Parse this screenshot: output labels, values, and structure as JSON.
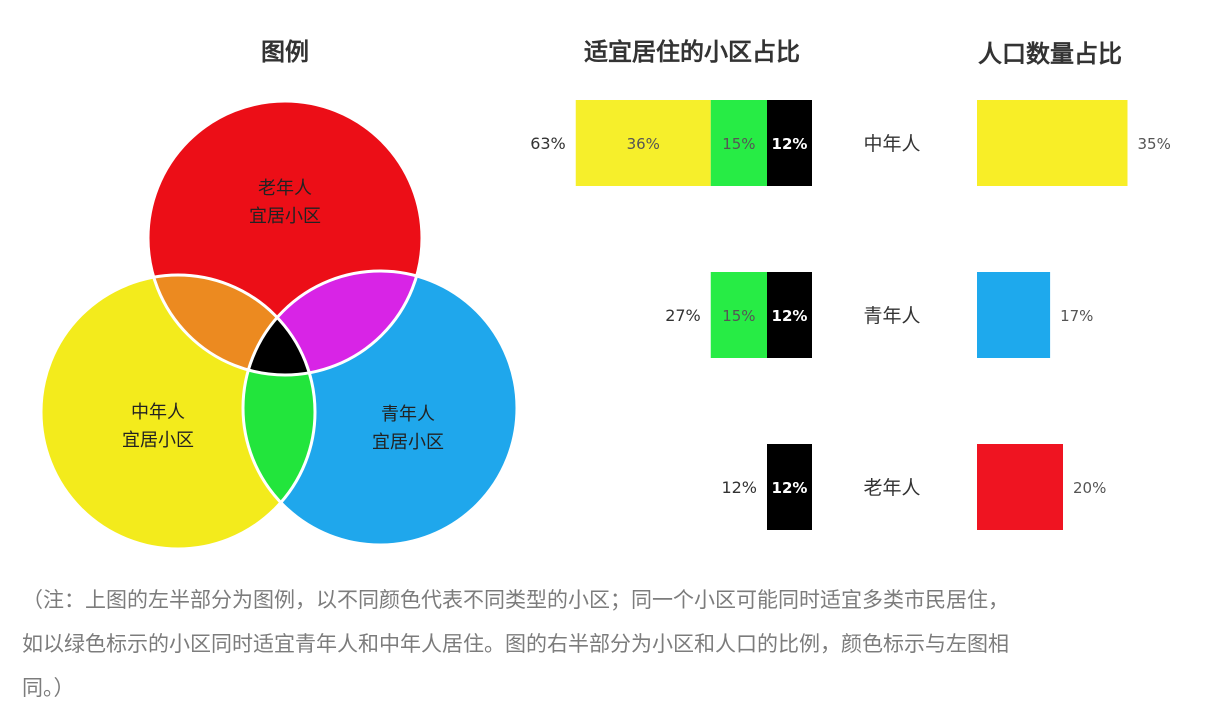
{
  "chart_data": [
    {
      "type": "venn",
      "title": "图例",
      "sets": [
        {
          "label_line1": "老年人",
          "label_line2": "宜居小区",
          "color": "#ec0e17"
        },
        {
          "label_line1": "中年人",
          "label_line2": "宜居小区",
          "color": "#f3eb1c"
        },
        {
          "label_line1": "青年人",
          "label_line2": "宜居小区",
          "color": "#1fa7ec"
        }
      ],
      "overlap_colors": {
        "old_middle": "#ec8a20",
        "old_young": "#d824e6",
        "middle_young": "#22e53c",
        "all_three": "#000000"
      }
    },
    {
      "type": "bar",
      "title": "适宜居住的小区占比",
      "rows": [
        {
          "total_label": "63%",
          "segments": [
            {
              "value": 36,
              "label": "36%",
              "color": "#f6ef2b"
            },
            {
              "value": 15,
              "label": "15%",
              "color": "#27ec45"
            },
            {
              "value": 12,
              "label": "12%",
              "color": "#000000"
            }
          ]
        },
        {
          "total_label": "27%",
          "segments": [
            {
              "value": 15,
              "label": "15%",
              "color": "#27ec45"
            },
            {
              "value": 12,
              "label": "12%",
              "color": "#000000"
            }
          ]
        },
        {
          "total_label": "12%",
          "segments": [
            {
              "value": 12,
              "label": "12%",
              "color": "#000000"
            }
          ]
        }
      ]
    },
    {
      "type": "bar",
      "title": "人口数量占比",
      "categories": [
        "中年人",
        "青年人",
        "老年人"
      ],
      "values": [
        35,
        17,
        20
      ],
      "value_labels": [
        "35%",
        "17%",
        "20%"
      ],
      "colors": [
        "#f8ee27",
        "#1ea9ed",
        "#ef1421"
      ]
    }
  ],
  "caption": {
    "line1": "（注：上图的左半部分为图例，以不同颜色代表不同类型的小区；同一个小区可能同时适宜多类市民居住，",
    "line2": "如以绿色标示的小区同时适宜青年人和中年人居住。图的右半部分为小区和人口的比例，颜色标示与左图相",
    "line3": "同。）"
  }
}
